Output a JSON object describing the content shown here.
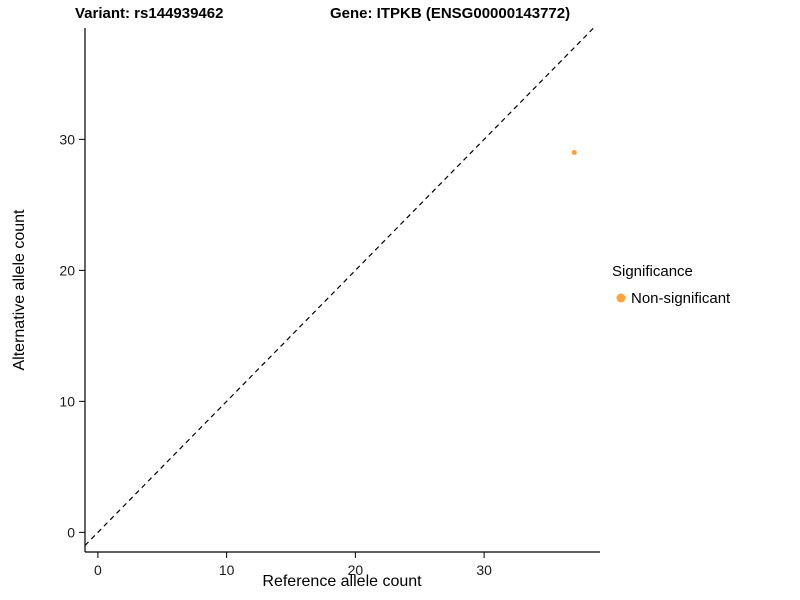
{
  "titles": {
    "left": "Variant: rs144939462",
    "right": "Gene: ITPKB (ENSG00000143772)"
  },
  "chart_data": {
    "type": "scatter",
    "title_left": "Variant: rs144939462",
    "title_right": "Gene: ITPKB (ENSG00000143772)",
    "xlabel": "Reference allele count",
    "ylabel": "Alternative allele count",
    "xlim": [
      -1,
      39
    ],
    "ylim": [
      -1.5,
      38.5
    ],
    "xticks": [
      0,
      10,
      20,
      30
    ],
    "yticks": [
      0,
      10,
      20,
      30
    ],
    "points": [
      {
        "x": 37,
        "y": 29,
        "series": "Non-significant"
      }
    ],
    "identity_line": {
      "style": "dashed",
      "from": [
        -1,
        -1
      ],
      "to": [
        38.5,
        38.5
      ]
    },
    "legend": {
      "title": "Significance",
      "position": "right",
      "entries": [
        {
          "label": "Non-significant",
          "color": "#FFA33E"
        }
      ]
    },
    "grid": false,
    "background": "#FFFFFF",
    "axis_color": "#000000"
  }
}
